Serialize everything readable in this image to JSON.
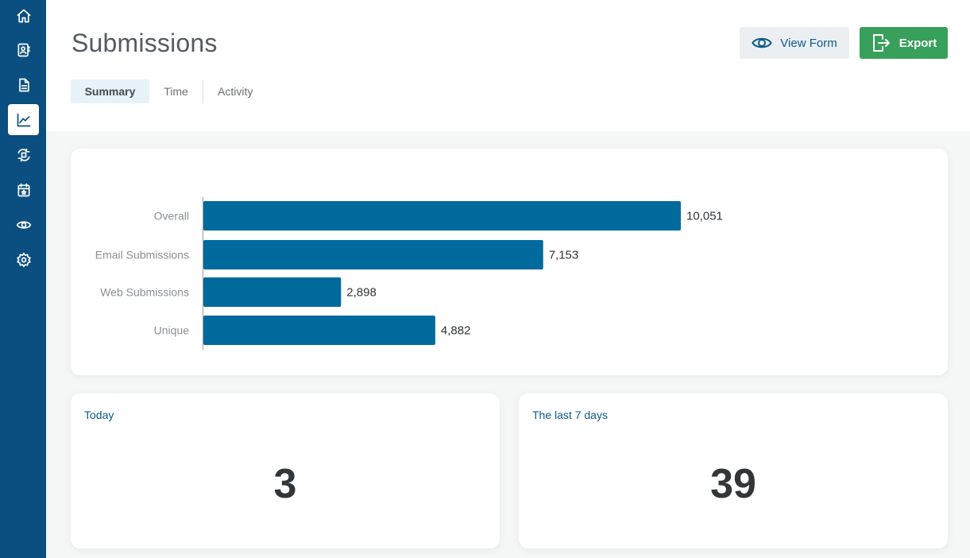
{
  "sidebar": {
    "items": [
      {
        "icon": "home-icon"
      },
      {
        "icon": "contacts-icon"
      },
      {
        "icon": "document-icon"
      },
      {
        "icon": "chart-line-icon",
        "active": true
      },
      {
        "icon": "refresh-icon"
      },
      {
        "icon": "calendar-icon"
      },
      {
        "icon": "eye-icon"
      },
      {
        "icon": "gear-icon"
      }
    ]
  },
  "header": {
    "title": "Submissions",
    "view_form_label": "View Form",
    "export_label": "Export"
  },
  "tabs": [
    {
      "label": "Summary",
      "active": true
    },
    {
      "label": "Time"
    },
    {
      "label": "Activity"
    }
  ],
  "chart_data": {
    "type": "bar",
    "orientation": "horizontal",
    "categories": [
      "Overall",
      "Email Submissions",
      "Web Submissions",
      "Unique"
    ],
    "values": [
      10051,
      7153,
      2898,
      4882
    ],
    "value_labels": [
      "10,051",
      "7,153",
      "2,898",
      "4,882"
    ],
    "grid": false,
    "color": "#006a9d"
  },
  "stats": {
    "today": {
      "label": "Today",
      "value": "3"
    },
    "last7": {
      "label": "The last 7 days",
      "value": "39"
    }
  },
  "colors": {
    "sidebar": "#0b4f80",
    "accent": "#0b5a8a",
    "export_green": "#37a05a",
    "bar": "#006a9d"
  }
}
